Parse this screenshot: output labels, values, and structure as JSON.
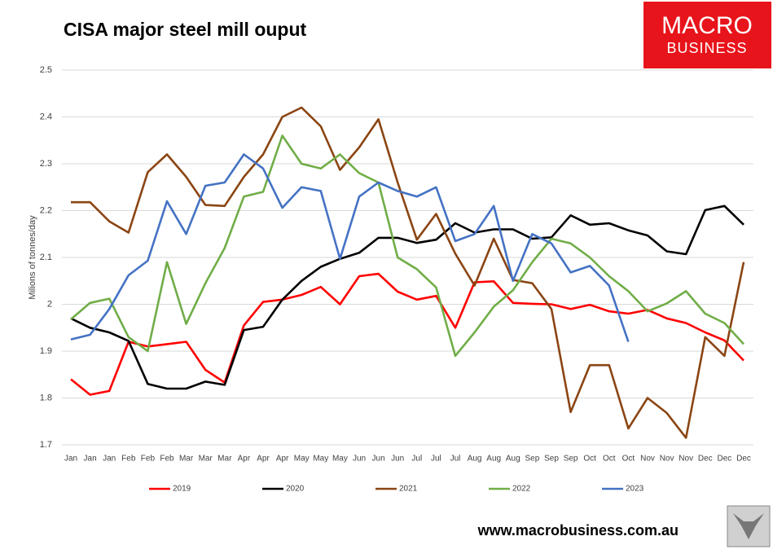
{
  "chart_data": {
    "type": "line",
    "title": "CISA major steel mill ouput",
    "y_label": "Milions of tonnes/day",
    "categories": [
      "Jan",
      "Jan",
      "Jan",
      "Feb",
      "Feb",
      "Feb",
      "Mar",
      "Mar",
      "Mar",
      "Apr",
      "Apr",
      "Apr",
      "May",
      "May",
      "May",
      "Jun",
      "Jun",
      "Jun",
      "Jul",
      "Jul",
      "Jul",
      "Aug",
      "Aug",
      "Aug",
      "Sep",
      "Sep",
      "Sep",
      "Oct",
      "Oct",
      "Oct",
      "Nov",
      "Nov",
      "Nov",
      "Dec",
      "Dec",
      "Dec"
    ],
    "series": [
      {
        "name": "2019",
        "color": "#ff0000",
        "values": [
          1.84,
          1.807,
          1.815,
          1.92,
          1.91,
          1.915,
          1.92,
          1.86,
          1.833,
          1.955,
          2.005,
          2.01,
          2.02,
          2.037,
          2.0,
          2.06,
          2.065,
          2.027,
          2.01,
          2.018,
          1.95,
          2.047,
          2.049,
          2.003,
          2.001,
          2.0,
          1.99,
          1.999,
          1.985,
          1.98,
          1.988,
          1.97,
          1.96,
          1.94,
          1.923,
          1.88
        ]
      },
      {
        "name": "2020",
        "color": "#000000",
        "values": [
          1.97,
          1.95,
          1.94,
          1.922,
          1.83,
          1.82,
          1.82,
          1.835,
          1.828,
          1.945,
          1.952,
          2.01,
          2.05,
          2.08,
          2.097,
          2.11,
          2.142,
          2.142,
          2.131,
          2.138,
          2.173,
          2.153,
          2.16,
          2.16,
          2.14,
          2.143,
          2.19,
          2.17,
          2.173,
          2.158,
          2.147,
          2.113,
          2.107,
          2.201,
          2.21,
          2.17
        ]
      },
      {
        "name": "2021",
        "color": "#8b4513",
        "values": [
          2.218,
          2.218,
          2.177,
          2.153,
          2.282,
          2.32,
          2.272,
          2.212,
          2.21,
          2.272,
          2.32,
          2.4,
          2.42,
          2.38,
          2.287,
          2.335,
          2.395,
          2.26,
          2.138,
          2.193,
          2.108,
          2.04,
          2.14,
          2.052,
          2.045,
          1.99,
          1.77,
          1.87,
          1.87,
          1.735,
          1.8,
          1.768,
          1.715,
          1.93,
          1.89,
          2.09
        ]
      },
      {
        "name": "2022",
        "color": "#70ad47",
        "values": [
          1.968,
          2.003,
          2.012,
          1.93,
          1.9,
          2.09,
          1.958,
          2.045,
          2.12,
          2.23,
          2.24,
          2.36,
          2.3,
          2.29,
          2.32,
          2.28,
          2.26,
          2.1,
          2.075,
          2.036,
          1.89,
          1.94,
          1.995,
          2.03,
          2.09,
          2.14,
          2.13,
          2.1,
          2.06,
          2.028,
          1.985,
          2.002,
          2.028,
          1.98,
          1.96,
          1.915
        ]
      },
      {
        "name": "2023",
        "color": "#4472c4",
        "values": [
          1.925,
          1.935,
          1.99,
          2.062,
          2.093,
          2.22,
          2.15,
          2.253,
          2.26,
          2.32,
          2.29,
          2.206,
          2.25,
          2.242,
          2.097,
          2.23,
          2.26,
          2.242,
          2.23,
          2.25,
          2.135,
          2.15,
          2.21,
          2.05,
          2.15,
          2.13,
          2.068,
          2.082,
          2.04,
          1.92,
          null,
          null,
          null,
          null,
          null,
          null
        ]
      }
    ],
    "ylim": [
      1.7,
      2.5
    ],
    "yticks": [
      1.7,
      1.8,
      1.9,
      2,
      2.1,
      2.2,
      2.3,
      2.4,
      2.5
    ],
    "grid": true,
    "legend": "bottom"
  },
  "logo": [
    "MACRO",
    "BUSINESS"
  ],
  "footer": "www.macrobusiness.com.au"
}
